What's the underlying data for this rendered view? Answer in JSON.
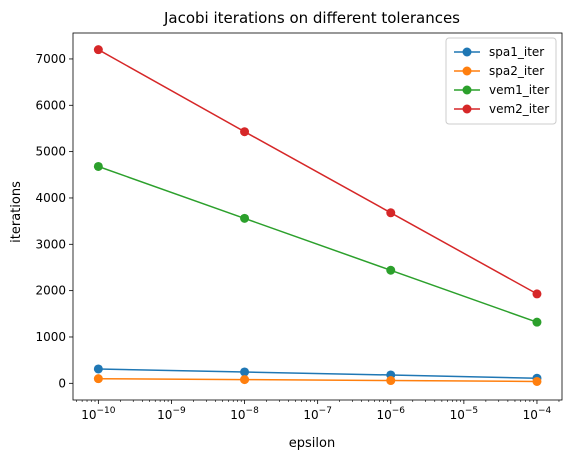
{
  "chart_data": {
    "type": "line",
    "title": "Jacobi iterations on different tolerances",
    "xlabel": "epsilon",
    "ylabel": "iterations",
    "xscale": "log",
    "x": [
      1e-10,
      1e-08,
      1e-06,
      0.0001
    ],
    "xlim": [
      4.5e-11,
      0.00022
    ],
    "ylim": [
      -360,
      7560
    ],
    "xticks": [
      {
        "value": 1e-10,
        "base": "10",
        "exp": "−10"
      },
      {
        "value": 1e-09,
        "base": "10",
        "exp": "−9"
      },
      {
        "value": 1e-08,
        "base": "10",
        "exp": "−8"
      },
      {
        "value": 1e-07,
        "base": "10",
        "exp": "−7"
      },
      {
        "value": 1e-06,
        "base": "10",
        "exp": "−6"
      },
      {
        "value": 1e-05,
        "base": "10",
        "exp": "−5"
      },
      {
        "value": 0.0001,
        "base": "10",
        "exp": "−4"
      }
    ],
    "yticks": [
      0,
      1000,
      2000,
      3000,
      4000,
      5000,
      6000,
      7000
    ],
    "grid": false,
    "legend_position": "top-right",
    "series": [
      {
        "name": "spa1_iter",
        "color": "#1f77b4",
        "values": [
          310,
          245,
          180,
          110
        ]
      },
      {
        "name": "spa2_iter",
        "color": "#ff7f0e",
        "values": [
          100,
          80,
          60,
          40
        ]
      },
      {
        "name": "vem1_iter",
        "color": "#2ca02c",
        "values": [
          4680,
          3560,
          2440,
          1320
        ]
      },
      {
        "name": "vem2_iter",
        "color": "#d62728",
        "values": [
          7200,
          5430,
          3680,
          1930
        ]
      }
    ]
  }
}
